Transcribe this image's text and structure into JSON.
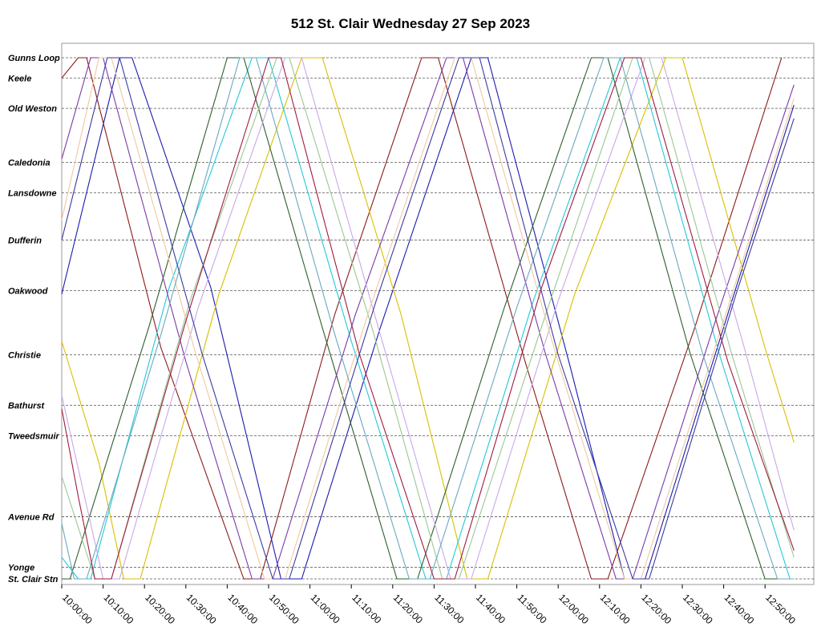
{
  "chart_data": {
    "type": "line",
    "title": "512 St. Clair Wednesday 27 Sep 2023",
    "xlabel": "",
    "ylabel": "",
    "x_range": [
      "10:00:00",
      "12:57:00"
    ],
    "x_tick_labels": [
      "10:00:00",
      "10:10:00",
      "10:20:00",
      "10:30:00",
      "10:40:00",
      "10:50:00",
      "11:00:00",
      "11:10:00",
      "11:20:00",
      "11:30:00",
      "11:40:00",
      "11:50:00",
      "12:00:00",
      "12:10:00",
      "12:20:00",
      "12:30:00",
      "12:40:00",
      "12:50:00"
    ],
    "stops": [
      {
        "name": "Gunns Loop",
        "km": 0.0
      },
      {
        "name": "Keele",
        "km": 0.3
      },
      {
        "name": "Old Weston",
        "km": 0.75
      },
      {
        "name": "Caledonia",
        "km": 1.55
      },
      {
        "name": "Lansdowne",
        "km": 2.0
      },
      {
        "name": "Dufferin",
        "km": 2.7
      },
      {
        "name": "Oakwood",
        "km": 3.45
      },
      {
        "name": "Christie",
        "km": 4.4
      },
      {
        "name": "Bathurst",
        "km": 5.15
      },
      {
        "name": "Tweedsmuir",
        "km": 5.6
      },
      {
        "name": "Avenue Rd",
        "km": 6.8
      },
      {
        "name": "Yonge",
        "km": 7.55
      },
      {
        "name": "St. Clair Stn",
        "km": 7.72
      }
    ],
    "grid": "horizontal dashed at stops",
    "series": [
      {
        "color": "#1a1ab0",
        "points": [
          [
            "10:00:00",
            3.5
          ],
          [
            "10:14:00",
            0.0
          ],
          [
            "10:17:00",
            0.0
          ],
          [
            "10:36:00",
            3.4
          ],
          [
            "10:53:00",
            7.72
          ],
          [
            "10:58:00",
            7.72
          ],
          [
            "11:17:00",
            4.0
          ],
          [
            "11:39:00",
            0.0
          ],
          [
            "11:43:00",
            0.0
          ],
          [
            "12:03:00",
            4.6
          ],
          [
            "12:16:00",
            7.72
          ],
          [
            "12:21:00",
            7.72
          ],
          [
            "12:42:00",
            3.6
          ],
          [
            "12:57:00",
            0.7
          ]
        ]
      },
      {
        "color": "#8b1a1a",
        "points": [
          [
            "10:00:00",
            0.3
          ],
          [
            "10:04:00",
            0.0
          ],
          [
            "10:06:00",
            0.0
          ],
          [
            "10:24:00",
            4.3
          ],
          [
            "10:44:00",
            7.72
          ],
          [
            "10:48:00",
            7.72
          ],
          [
            "11:06:00",
            3.8
          ],
          [
            "11:27:00",
            0.0
          ],
          [
            "11:31:00",
            0.0
          ],
          [
            "11:52:00",
            4.5
          ],
          [
            "12:08:00",
            7.72
          ],
          [
            "12:12:00",
            7.72
          ],
          [
            "12:33:00",
            4.0
          ],
          [
            "12:54:00",
            0.0
          ]
        ]
      },
      {
        "color": "#d8c000",
        "points": [
          [
            "10:00:00",
            4.2
          ],
          [
            "10:09:00",
            6.0
          ],
          [
            "10:15:00",
            7.72
          ],
          [
            "10:19:00",
            7.72
          ],
          [
            "10:38:00",
            3.5
          ],
          [
            "10:58:00",
            0.0
          ],
          [
            "11:03:00",
            0.0
          ],
          [
            "11:22:00",
            3.8
          ],
          [
            "11:38:00",
            7.72
          ],
          [
            "11:43:00",
            7.72
          ],
          [
            "12:04:00",
            3.5
          ],
          [
            "12:26:00",
            0.0
          ],
          [
            "12:30:00",
            0.0
          ],
          [
            "12:50:00",
            4.3
          ],
          [
            "12:57:00",
            5.7
          ]
        ]
      },
      {
        "color": "#22c8d8",
        "points": [
          [
            "10:00:00",
            7.4
          ],
          [
            "10:04:00",
            7.72
          ],
          [
            "10:07:00",
            7.72
          ],
          [
            "10:26:00",
            3.4
          ],
          [
            "10:46:00",
            0.0
          ],
          [
            "10:50:00",
            0.0
          ],
          [
            "11:10:00",
            4.2
          ],
          [
            "11:28:00",
            7.72
          ],
          [
            "11:33:00",
            7.72
          ],
          [
            "11:54:00",
            3.6
          ],
          [
            "12:15:00",
            0.0
          ],
          [
            "12:19:00",
            0.0
          ],
          [
            "12:39:00",
            4.4
          ],
          [
            "12:56:00",
            7.72
          ]
        ]
      },
      {
        "color": "#2e5e2e",
        "points": [
          [
            "10:00:00",
            7.72
          ],
          [
            "10:02:00",
            7.72
          ],
          [
            "10:21:00",
            4.0
          ],
          [
            "10:40:00",
            0.0
          ],
          [
            "10:44:00",
            0.0
          ],
          [
            "11:03:00",
            4.0
          ],
          [
            "11:21:00",
            7.72
          ],
          [
            "11:26:00",
            7.72
          ],
          [
            "11:47:00",
            3.7
          ],
          [
            "12:08:00",
            0.0
          ],
          [
            "12:12:00",
            0.0
          ],
          [
            "12:32:00",
            4.4
          ],
          [
            "12:50:00",
            7.72
          ],
          [
            "12:57:00",
            7.72
          ]
        ]
      },
      {
        "color": "#7a3aa8",
        "points": [
          [
            "10:00:00",
            1.5
          ],
          [
            "10:07:00",
            0.0
          ],
          [
            "10:10:00",
            0.0
          ],
          [
            "10:30:00",
            4.5
          ],
          [
            "10:46:00",
            7.72
          ],
          [
            "10:51:00",
            7.72
          ],
          [
            "11:11:00",
            3.8
          ],
          [
            "11:33:00",
            0.0
          ],
          [
            "11:37:00",
            0.0
          ],
          [
            "11:57:00",
            4.4
          ],
          [
            "12:14:00",
            7.72
          ],
          [
            "12:18:00",
            7.72
          ],
          [
            "12:38:00",
            3.9
          ],
          [
            "12:57:00",
            0.4
          ]
        ]
      },
      {
        "color": "#c8a8e8",
        "points": [
          [
            "10:00:00",
            5.0
          ],
          [
            "10:10:00",
            7.72
          ],
          [
            "10:14:00",
            7.72
          ],
          [
            "10:33:00",
            3.7
          ],
          [
            "10:54:00",
            0.0
          ],
          [
            "10:58:00",
            0.0
          ],
          [
            "11:17:00",
            4.1
          ],
          [
            "11:34:00",
            7.72
          ],
          [
            "11:39:00",
            7.72
          ],
          [
            "12:00:00",
            3.6
          ],
          [
            "12:21:00",
            0.0
          ],
          [
            "12:25:00",
            0.0
          ],
          [
            "12:45:00",
            4.3
          ],
          [
            "12:57:00",
            7.0
          ]
        ]
      },
      {
        "color": "#9ac890",
        "points": [
          [
            "10:00:00",
            6.2
          ],
          [
            "10:08:00",
            7.72
          ],
          [
            "10:12:00",
            7.72
          ],
          [
            "10:31:00",
            3.6
          ],
          [
            "10:52:00",
            0.0
          ],
          [
            "10:55:00",
            0.0
          ],
          [
            "11:15:00",
            4.0
          ],
          [
            "11:32:00",
            7.72
          ],
          [
            "11:36:00",
            7.72
          ],
          [
            "11:57:00",
            3.8
          ],
          [
            "12:18:00",
            0.0
          ],
          [
            "12:22:00",
            0.0
          ],
          [
            "12:42:00",
            4.4
          ],
          [
            "12:57:00",
            7.4
          ]
        ]
      },
      {
        "color": "#f0c8a0",
        "points": [
          [
            "10:00:00",
            2.4
          ],
          [
            "10:09:00",
            0.0
          ],
          [
            "10:12:00",
            0.0
          ],
          [
            "10:32:00",
            4.3
          ],
          [
            "10:49:00",
            7.72
          ],
          [
            "10:54:00",
            7.72
          ],
          [
            "11:14:00",
            3.8
          ],
          [
            "11:35:00",
            0.0
          ],
          [
            "11:39:00",
            0.0
          ],
          [
            "11:59:00",
            4.3
          ],
          [
            "12:16:00",
            7.72
          ],
          [
            "12:20:00",
            7.72
          ],
          [
            "12:41:00",
            3.7
          ],
          [
            "12:57:00",
            0.6
          ]
        ]
      },
      {
        "color": "#6aa8c0",
        "points": [
          [
            "10:00:00",
            6.9
          ],
          [
            "10:03:00",
            7.72
          ],
          [
            "10:06:00",
            7.72
          ],
          [
            "10:24:00",
            4.1
          ],
          [
            "10:43:00",
            0.0
          ],
          [
            "10:47:00",
            0.0
          ],
          [
            "11:06:00",
            4.1
          ],
          [
            "11:24:00",
            7.72
          ],
          [
            "11:29:00",
            7.72
          ],
          [
            "11:50:00",
            3.7
          ],
          [
            "12:11:00",
            0.0
          ],
          [
            "12:15:00",
            0.0
          ],
          [
            "12:35:00",
            4.4
          ],
          [
            "12:53:00",
            7.72
          ],
          [
            "12:57:00",
            7.72
          ]
        ]
      },
      {
        "color": "#3a3aa0",
        "points": [
          [
            "10:00:00",
            2.7
          ],
          [
            "10:11:00",
            0.0
          ],
          [
            "10:14:00",
            0.0
          ],
          [
            "10:34:00",
            4.4
          ],
          [
            "10:51:00",
            7.72
          ],
          [
            "10:55:00",
            7.72
          ],
          [
            "11:16:00",
            3.6
          ],
          [
            "11:36:00",
            0.0
          ],
          [
            "11:41:00",
            0.0
          ],
          [
            "12:00:00",
            4.4
          ],
          [
            "12:18:00",
            7.72
          ],
          [
            "12:22:00",
            7.72
          ],
          [
            "12:43:00",
            3.5
          ],
          [
            "12:57:00",
            0.9
          ]
        ]
      },
      {
        "color": "#a01a40",
        "points": [
          [
            "10:00:00",
            5.2
          ],
          [
            "10:04:00",
            6.5
          ],
          [
            "10:08:00",
            7.72
          ],
          [
            "10:12:00",
            7.72
          ],
          [
            "10:30:00",
            3.9
          ],
          [
            "10:50:00",
            0.0
          ],
          [
            "10:53:00",
            0.0
          ],
          [
            "11:12:00",
            4.4
          ],
          [
            "11:30:00",
            7.72
          ],
          [
            "11:35:00",
            7.72
          ],
          [
            "11:56:00",
            3.4
          ],
          [
            "12:16:00",
            0.0
          ],
          [
            "12:20:00",
            0.0
          ],
          [
            "12:41:00",
            4.5
          ],
          [
            "12:57:00",
            7.3
          ]
        ]
      }
    ]
  }
}
